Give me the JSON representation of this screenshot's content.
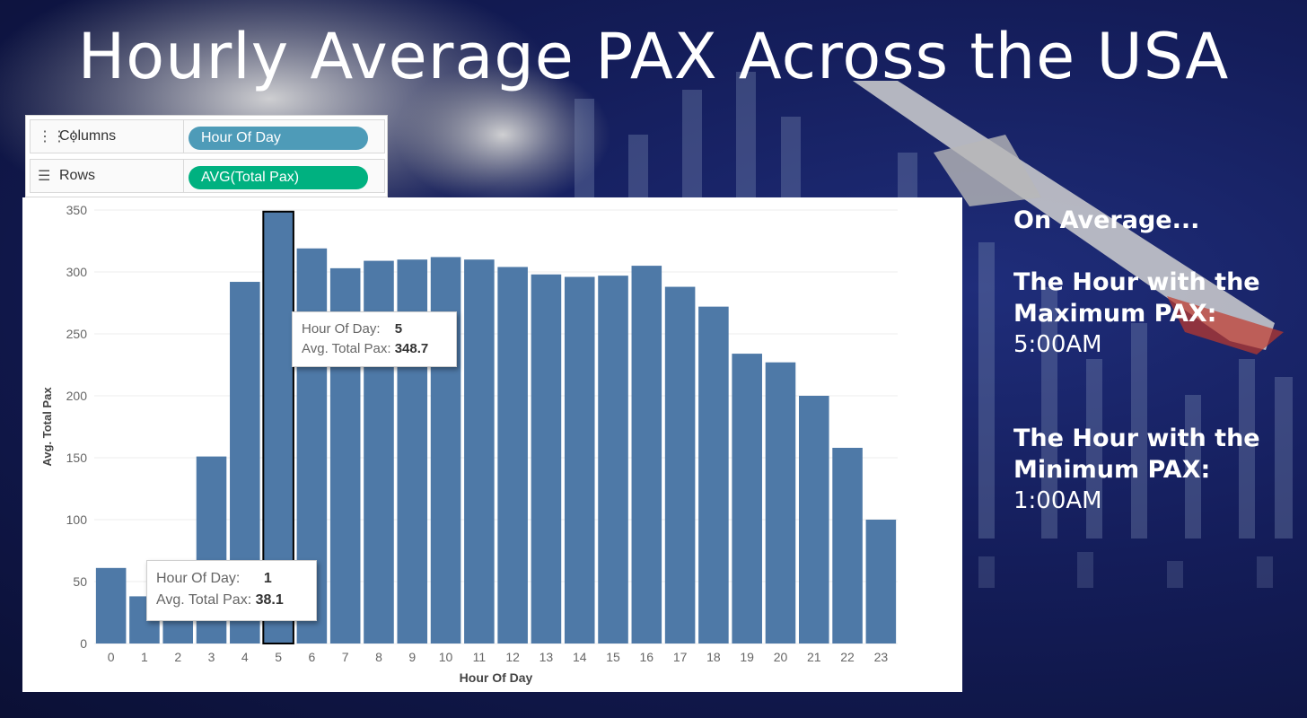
{
  "page_title": "Hourly Average PAX Across the USA",
  "shelves": {
    "columns": {
      "label": "Columns",
      "pill": "Hour Of Day",
      "pill_color": "#4e9bb8",
      "icon": "columns-icon"
    },
    "rows": {
      "label": "Rows",
      "pill": "AVG(Total Pax)",
      "pill_color": "#00b180",
      "icon": "rows-icon"
    }
  },
  "side_panel": {
    "intro": "On Average...",
    "max_heading_1": "The Hour with the",
    "max_heading_2": "Maximum PAX:",
    "max_value": "5:00AM",
    "min_heading_1": "The Hour with the",
    "min_heading_2": "Minimum PAX:",
    "min_value": "1:00AM"
  },
  "tooltips": {
    "max": {
      "hour_label": "Hour Of Day:",
      "hour_value": "5",
      "pax_label": "Avg. Total Pax:",
      "pax_value": "348.7"
    },
    "min": {
      "hour_label": "Hour Of Day:",
      "hour_value": "1",
      "pax_label": "Avg. Total Pax:",
      "pax_value": "38.1"
    }
  },
  "chart_data": {
    "type": "bar",
    "xlabel": "Hour Of Day",
    "ylabel": "Avg. Total Pax",
    "ylim": [
      0,
      350
    ],
    "yticks": [
      0,
      50,
      100,
      150,
      200,
      250,
      300,
      350
    ],
    "categories": [
      "0",
      "1",
      "2",
      "3",
      "4",
      "5",
      "6",
      "7",
      "8",
      "9",
      "10",
      "11",
      "12",
      "13",
      "14",
      "15",
      "16",
      "17",
      "18",
      "19",
      "20",
      "21",
      "22",
      "23"
    ],
    "values": [
      61,
      38.1,
      40,
      151,
      292,
      348.7,
      319,
      303,
      309,
      310,
      312,
      310,
      304,
      298,
      296,
      297,
      305,
      288,
      272,
      234,
      227,
      200,
      158,
      100
    ],
    "bar_color": "#4e79a7",
    "highlighted_category": "5",
    "grid": true
  }
}
